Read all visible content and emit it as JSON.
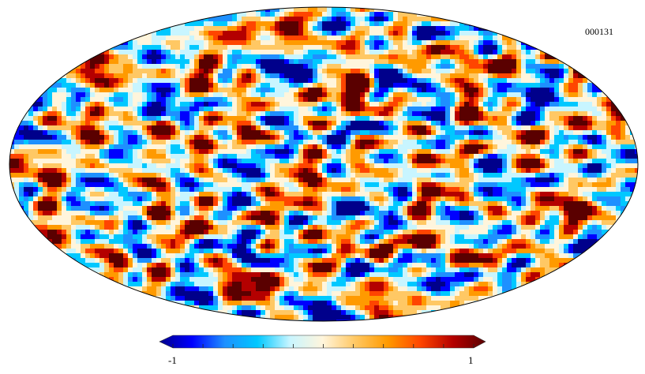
{
  "map": {
    "label": "000131",
    "projection": "mollweide",
    "outline_color": "#000000"
  },
  "colorbar": {
    "min_label": "-1",
    "max_label": "1",
    "min": -1,
    "max": 1,
    "tick_count": 11,
    "extend": "both",
    "colors": [
      "#00008b",
      "#0000ff",
      "#1e90ff",
      "#00c8ff",
      "#c8f5ff",
      "#fff5dc",
      "#ffc864",
      "#ff9a00",
      "#ff4500",
      "#b40000",
      "#5a0000"
    ]
  }
}
